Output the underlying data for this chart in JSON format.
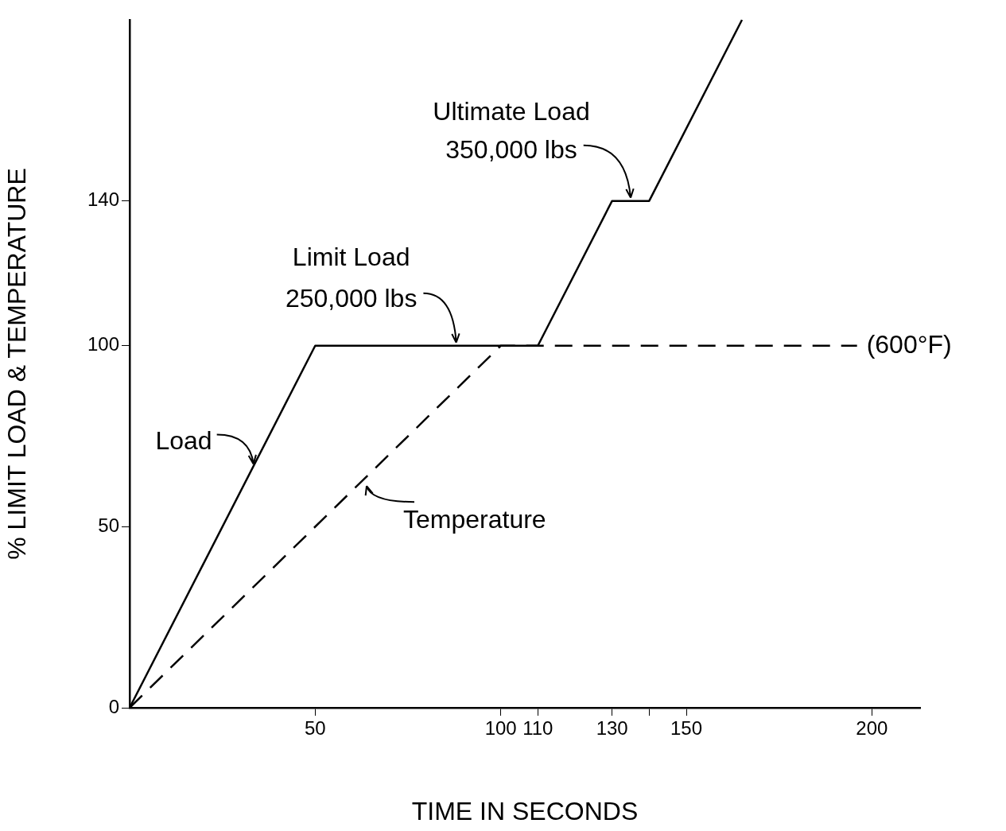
{
  "chart_data": {
    "type": "line",
    "xlabel": "TIME IN SECONDS",
    "ylabel": "% LIMIT LOAD & TEMPERATURE",
    "xlim": [
      0,
      213
    ],
    "ylim": [
      0,
      190
    ],
    "xticks": [
      50,
      100,
      110,
      130,
      {
        "value": 140,
        "label": null
      },
      150,
      200
    ],
    "yticks": [
      0,
      50,
      100,
      140
    ],
    "grid": false,
    "legend": false,
    "marker": "none",
    "series": [
      {
        "color": "#000000",
        "line_style": "solid",
        "x": [
          0,
          50,
          110,
          130,
          140,
          165
        ],
        "values": [
          0,
          100,
          100,
          140,
          140,
          190
        ]
      },
      {
        "color": "#000000",
        "line_style": "dashed",
        "x": [
          0,
          100,
          196
        ],
        "values": [
          0,
          100,
          100
        ]
      }
    ],
    "annotations": [
      {
        "text": "Ultimate Load",
        "x": 135,
        "y": 140
      },
      {
        "text": "350,000 lbs",
        "x": 135,
        "y": 140
      },
      {
        "text": "Limit Load",
        "x": 88,
        "y": 100
      },
      {
        "text": "250,000 lbs",
        "x": 88,
        "y": 100
      },
      {
        "text": "(600°F)",
        "x": 196,
        "y": 100
      },
      {
        "text": "Load",
        "x": 34,
        "y": 68
      },
      {
        "text": "Temperature",
        "x": 63,
        "y": 63
      }
    ]
  }
}
